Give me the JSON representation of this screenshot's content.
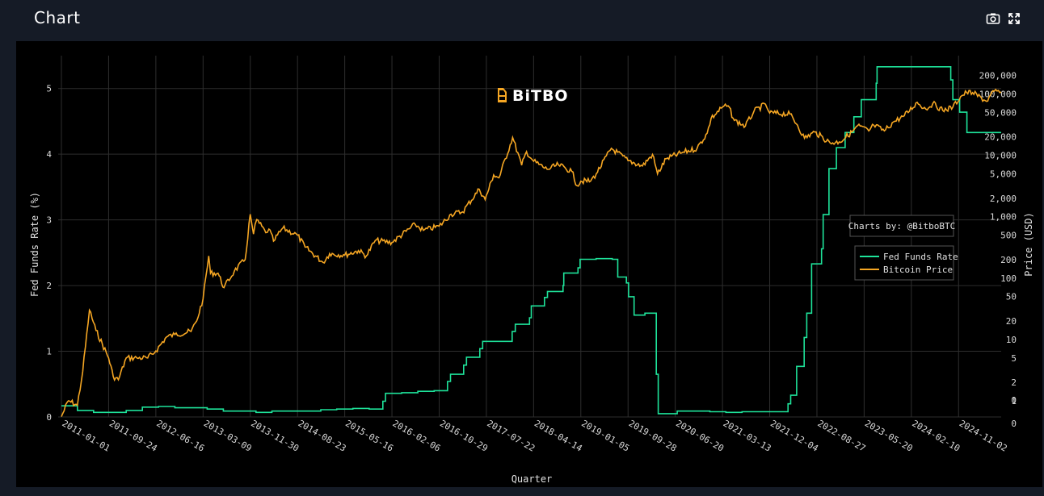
{
  "header": {
    "title": "Chart",
    "camera_icon": "camera-icon",
    "fullscreen_icon": "fullscreen-icon"
  },
  "watermark": "BiTBO",
  "credit": "Charts by: @BitboBTC",
  "colors": {
    "background": "#000000",
    "grid": "#2e2e2e",
    "fed": "#1ee39a",
    "btc": "#f5a623"
  },
  "chart_data": {
    "type": "line",
    "xlabel": "Quarter",
    "ylabel_left": "Fed Funds Rate (%)",
    "ylabel_right": "Price (USD)",
    "x_ticks": [
      "2011-01-01",
      "2011-09-24",
      "2012-06-16",
      "2013-03-09",
      "2013-11-30",
      "2014-08-23",
      "2015-05-16",
      "2016-02-06",
      "2016-10-29",
      "2017-07-22",
      "2018-04-14",
      "2019-01-05",
      "2019-09-28",
      "2020-06-20",
      "2021-03-13",
      "2021-12-04",
      "2022-08-27",
      "2023-05-20",
      "2024-02-10",
      "2024-11-02"
    ],
    "y_left_ticks": [
      "0",
      "1",
      "2",
      "3",
      "4",
      "5"
    ],
    "y_left_range": [
      0,
      5.5
    ],
    "y_right_scale": "log",
    "y_right_ticks": [
      "0",
      "0",
      "1",
      "2",
      "5",
      "10",
      "20",
      "50",
      "100",
      "200",
      "500",
      "1,000",
      "2,000",
      "5,000",
      "10,000",
      "20,000",
      "50,000",
      "100,000",
      "200,000"
    ],
    "legend": {
      "position": "right",
      "items": [
        "Fed Funds Rate",
        "Bitcoin Price"
      ]
    },
    "grid": true,
    "series": [
      {
        "name": "Fed Funds Rate",
        "axis": "left",
        "step": true,
        "points": [
          [
            "2011-01-01",
            0.17
          ],
          [
            "2011-04-01",
            0.1
          ],
          [
            "2011-07-01",
            0.07
          ],
          [
            "2011-10-01",
            0.07
          ],
          [
            "2012-01-01",
            0.1
          ],
          [
            "2012-04-01",
            0.15
          ],
          [
            "2012-07-01",
            0.16
          ],
          [
            "2012-10-01",
            0.14
          ],
          [
            "2013-01-01",
            0.14
          ],
          [
            "2013-04-01",
            0.12
          ],
          [
            "2013-07-01",
            0.09
          ],
          [
            "2013-10-01",
            0.09
          ],
          [
            "2014-01-01",
            0.07
          ],
          [
            "2014-04-01",
            0.09
          ],
          [
            "2014-07-01",
            0.09
          ],
          [
            "2014-10-01",
            0.09
          ],
          [
            "2015-01-01",
            0.11
          ],
          [
            "2015-04-01",
            0.12
          ],
          [
            "2015-07-01",
            0.13
          ],
          [
            "2015-10-01",
            0.12
          ],
          [
            "2015-12-17",
            0.24
          ],
          [
            "2016-01-01",
            0.36
          ],
          [
            "2016-04-01",
            0.37
          ],
          [
            "2016-07-01",
            0.39
          ],
          [
            "2016-10-01",
            0.4
          ],
          [
            "2016-12-15",
            0.54
          ],
          [
            "2017-01-01",
            0.65
          ],
          [
            "2017-03-16",
            0.79
          ],
          [
            "2017-04-01",
            0.91
          ],
          [
            "2017-06-15",
            1.04
          ],
          [
            "2017-07-01",
            1.15
          ],
          [
            "2017-10-01",
            1.15
          ],
          [
            "2017-12-14",
            1.3
          ],
          [
            "2018-01-01",
            1.41
          ],
          [
            "2018-03-22",
            1.51
          ],
          [
            "2018-04-01",
            1.69
          ],
          [
            "2018-06-14",
            1.82
          ],
          [
            "2018-07-01",
            1.91
          ],
          [
            "2018-09-27",
            2.0
          ],
          [
            "2018-10-01",
            2.19
          ],
          [
            "2018-12-20",
            2.27
          ],
          [
            "2019-01-01",
            2.4
          ],
          [
            "2019-04-01",
            2.41
          ],
          [
            "2019-07-01",
            2.4
          ],
          [
            "2019-08-01",
            2.13
          ],
          [
            "2019-09-19",
            2.04
          ],
          [
            "2019-10-01",
            1.83
          ],
          [
            "2019-11-01",
            1.55
          ],
          [
            "2020-01-01",
            1.58
          ],
          [
            "2020-03-05",
            0.65
          ],
          [
            "2020-03-16",
            0.05
          ],
          [
            "2020-07-01",
            0.09
          ],
          [
            "2020-10-01",
            0.09
          ],
          [
            "2021-01-01",
            0.08
          ],
          [
            "2021-04-01",
            0.07
          ],
          [
            "2021-07-01",
            0.08
          ],
          [
            "2021-10-01",
            0.08
          ],
          [
            "2022-03-17",
            0.2
          ],
          [
            "2022-04-01",
            0.33
          ],
          [
            "2022-05-05",
            0.77
          ],
          [
            "2022-06-16",
            1.21
          ],
          [
            "2022-07-01",
            1.58
          ],
          [
            "2022-07-28",
            2.33
          ],
          [
            "2022-09-22",
            2.56
          ],
          [
            "2022-10-01",
            3.08
          ],
          [
            "2022-11-03",
            3.78
          ],
          [
            "2022-12-15",
            4.1
          ],
          [
            "2023-02-02",
            4.33
          ],
          [
            "2023-03-23",
            4.57
          ],
          [
            "2023-05-04",
            4.83
          ],
          [
            "2023-07-27",
            5.08
          ],
          [
            "2023-08-01",
            5.33
          ],
          [
            "2024-09-19",
            5.13
          ],
          [
            "2024-10-01",
            4.83
          ],
          [
            "2024-11-08",
            4.64
          ],
          [
            "2024-12-19",
            4.33
          ],
          [
            "2025-06-30",
            4.33
          ]
        ]
      },
      {
        "name": "Bitcoin Price",
        "axis": "right",
        "points": [
          [
            "2011-01-01",
            0.3
          ],
          [
            "2011-02-09",
            1.0
          ],
          [
            "2011-04-01",
            0.8
          ],
          [
            "2011-05-01",
            3
          ],
          [
            "2011-06-08",
            30
          ],
          [
            "2011-07-15",
            14
          ],
          [
            "2011-09-24",
            5
          ],
          [
            "2011-10-20",
            2.5
          ],
          [
            "2011-11-18",
            2.2
          ],
          [
            "2012-01-01",
            5
          ],
          [
            "2012-03-01",
            5
          ],
          [
            "2012-05-01",
            5
          ],
          [
            "2012-06-16",
            6.5
          ],
          [
            "2012-08-15",
            11
          ],
          [
            "2012-10-01",
            12
          ],
          [
            "2012-12-31",
            13.5
          ],
          [
            "2013-02-01",
            20
          ],
          [
            "2013-03-09",
            46
          ],
          [
            "2013-04-10",
            230
          ],
          [
            "2013-04-20",
            120
          ],
          [
            "2013-06-01",
            120
          ],
          [
            "2013-07-05",
            70
          ],
          [
            "2013-09-01",
            130
          ],
          [
            "2013-11-01",
            200
          ],
          [
            "2013-11-30",
            1100
          ],
          [
            "2013-12-18",
            520
          ],
          [
            "2014-01-05",
            900
          ],
          [
            "2014-02-25",
            550
          ],
          [
            "2014-03-15",
            630
          ],
          [
            "2014-04-10",
            400
          ],
          [
            "2014-06-01",
            650
          ],
          [
            "2014-08-23",
            500
          ],
          [
            "2014-10-05",
            320
          ],
          [
            "2015-01-14",
            180
          ],
          [
            "2015-02-20",
            250
          ],
          [
            "2015-05-16",
            236
          ],
          [
            "2015-08-01",
            280
          ],
          [
            "2015-09-15",
            230
          ],
          [
            "2015-11-04",
            410
          ],
          [
            "2016-02-06",
            380
          ],
          [
            "2016-06-16",
            750
          ],
          [
            "2016-08-01",
            600
          ],
          [
            "2016-10-29",
            700
          ],
          [
            "2017-01-04",
            1100
          ],
          [
            "2017-03-10",
            1200
          ],
          [
            "2017-06-12",
            2800
          ],
          [
            "2017-07-15",
            1900
          ],
          [
            "2017-09-01",
            4800
          ],
          [
            "2017-10-01",
            4300
          ],
          [
            "2017-12-17",
            19500
          ],
          [
            "2018-02-06",
            6900
          ],
          [
            "2018-03-05",
            11500
          ],
          [
            "2018-04-14",
            8000
          ],
          [
            "2018-06-29",
            5900
          ],
          [
            "2018-09-01",
            7000
          ],
          [
            "2018-11-15",
            5500
          ],
          [
            "2018-12-15",
            3200
          ],
          [
            "2019-01-05",
            3800
          ],
          [
            "2019-03-01",
            3800
          ],
          [
            "2019-04-02",
            5000
          ],
          [
            "2019-06-26",
            13000
          ],
          [
            "2019-09-28",
            8200
          ],
          [
            "2019-12-18",
            6700
          ],
          [
            "2020-02-13",
            10300
          ],
          [
            "2020-03-12",
            5000
          ],
          [
            "2020-04-30",
            8800
          ],
          [
            "2020-07-27",
            11000
          ],
          [
            "2020-10-21",
            13000
          ],
          [
            "2020-12-17",
            23000
          ],
          [
            "2021-01-08",
            40000
          ],
          [
            "2021-03-13",
            61000
          ],
          [
            "2021-04-14",
            64000
          ],
          [
            "2021-05-19",
            37000
          ],
          [
            "2021-07-20",
            30000
          ],
          [
            "2021-09-06",
            52000
          ],
          [
            "2021-11-10",
            68000
          ],
          [
            "2021-12-04",
            49000
          ],
          [
            "2022-03-28",
            47000
          ],
          [
            "2022-05-10",
            31000
          ],
          [
            "2022-06-18",
            19000
          ],
          [
            "2022-08-15",
            24000
          ],
          [
            "2022-11-09",
            16000
          ],
          [
            "2022-12-31",
            16500
          ],
          [
            "2023-03-13",
            24000
          ],
          [
            "2023-04-14",
            30500
          ],
          [
            "2023-06-15",
            25000
          ],
          [
            "2023-07-13",
            31000
          ],
          [
            "2023-09-11",
            25000
          ],
          [
            "2023-11-01",
            35000
          ],
          [
            "2024-01-01",
            44000
          ],
          [
            "2024-03-14",
            73000
          ],
          [
            "2024-05-01",
            57000
          ],
          [
            "2024-06-10",
            70000
          ],
          [
            "2024-08-05",
            54000
          ],
          [
            "2024-10-01",
            61000
          ],
          [
            "2024-11-13",
            90000
          ],
          [
            "2024-12-17",
            106000
          ],
          [
            "2025-01-20",
            105000
          ],
          [
            "2025-04-08",
            76000
          ],
          [
            "2025-05-22",
            111000
          ],
          [
            "2025-06-30",
            107000
          ]
        ]
      }
    ]
  }
}
